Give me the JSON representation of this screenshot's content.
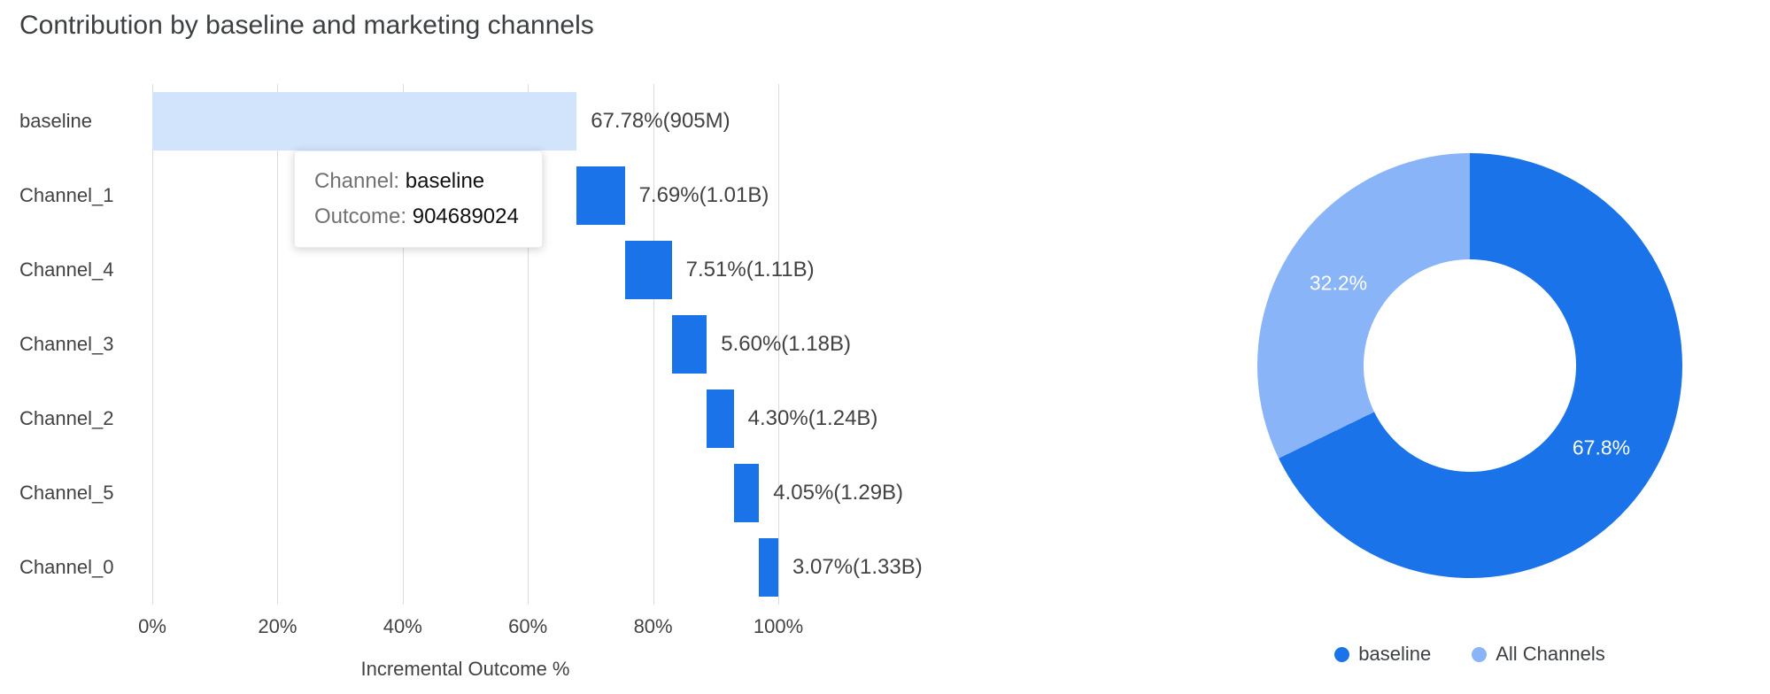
{
  "page": {
    "title": "Contribution by baseline and marketing channels"
  },
  "colors": {
    "primary_blue": "#1a73e8",
    "light_blue": "#8ab4f8",
    "baseline_bar": "#d2e3fc",
    "gridline": "#dadce0"
  },
  "chart_data": [
    {
      "type": "bar",
      "subtype": "horizontal-waterfall",
      "title": "Contribution by baseline and marketing channels",
      "xlabel": "Incremental Outcome %",
      "xlim": [
        0,
        100
      ],
      "grid": true,
      "x_tick_labels": [
        "0%",
        "20%",
        "40%",
        "60%",
        "80%",
        "100%"
      ],
      "x_tick_values": [
        0,
        20,
        40,
        60,
        80,
        100
      ],
      "categories": [
        "baseline",
        "Channel_1",
        "Channel_4",
        "Channel_3",
        "Channel_2",
        "Channel_5",
        "Channel_0"
      ],
      "bars": [
        {
          "label": "baseline",
          "value": 67.78,
          "display": "67.78%(905M)",
          "color": "#d2e3fc"
        },
        {
          "label": "Channel_1",
          "value": 7.69,
          "display": "7.69%(1.01B)",
          "color": "#1a73e8"
        },
        {
          "label": "Channel_4",
          "value": 7.51,
          "display": "7.51%(1.11B)",
          "color": "#1a73e8"
        },
        {
          "label": "Channel_3",
          "value": 5.6,
          "display": "5.60%(1.18B)",
          "color": "#1a73e8"
        },
        {
          "label": "Channel_2",
          "value": 4.3,
          "display": "4.30%(1.24B)",
          "color": "#1a73e8"
        },
        {
          "label": "Channel_5",
          "value": 4.05,
          "display": "4.05%(1.29B)",
          "color": "#1a73e8"
        },
        {
          "label": "Channel_0",
          "value": 3.07,
          "display": "3.07%(1.33B)",
          "color": "#1a73e8"
        }
      ],
      "tooltip": {
        "row1_label": "Channel:",
        "row1_value": "baseline",
        "row2_label": "Outcome:",
        "row2_value": "904689024"
      }
    },
    {
      "type": "pie",
      "subtype": "donut",
      "start_angle_deg": 0,
      "legend_position": "bottom",
      "slices": [
        {
          "label": "baseline",
          "value": 67.8,
          "display": "67.8%",
          "color": "#1a73e8"
        },
        {
          "label": "All Channels",
          "value": 32.2,
          "display": "32.2%",
          "color": "#8ab4f8"
        }
      ]
    }
  ]
}
